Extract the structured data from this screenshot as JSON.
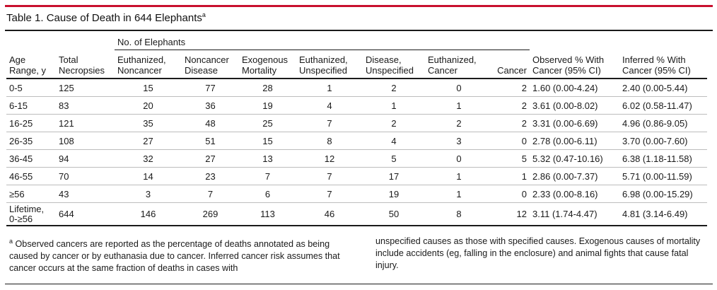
{
  "title": {
    "text": "Table 1. Cause of Death in 644 Elephants",
    "marker": "a"
  },
  "group_header": "No. of Elephants",
  "columns": [
    "Age\nRange, y",
    "Total\nNecropsies",
    "Euthanized,\nNoncancer",
    "Noncancer\nDisease",
    "Exogenous\nMortality",
    "Euthanized,\nUnspecified",
    "Disease,\nUnspecified",
    "Euthanized,\nCancer",
    "Cancer",
    "Observed % With\nCancer (95% CI)",
    "Inferred % With\nCancer (95% CI)"
  ],
  "rows": [
    [
      "0-5",
      "125",
      "15",
      "77",
      "28",
      "1",
      "2",
      "0",
      "2",
      "1.60 (0.00-4.24)",
      "2.40 (0.00-5.44)"
    ],
    [
      "6-15",
      "83",
      "20",
      "36",
      "19",
      "4",
      "1",
      "1",
      "2",
      "3.61 (0.00-8.02)",
      "6.02 (0.58-11.47)"
    ],
    [
      "16-25",
      "121",
      "35",
      "48",
      "25",
      "7",
      "2",
      "2",
      "2",
      "3.31 (0.00-6.69)",
      "4.96 (0.86-9.05)"
    ],
    [
      "26-35",
      "108",
      "27",
      "51",
      "15",
      "8",
      "4",
      "3",
      "0",
      "2.78 (0.00-6.11)",
      "3.70 (0.00-7.60)"
    ],
    [
      "36-45",
      "94",
      "32",
      "27",
      "13",
      "12",
      "5",
      "0",
      "5",
      "5.32 (0.47-10.16)",
      "6.38 (1.18-11.58)"
    ],
    [
      "46-55",
      "70",
      "14",
      "23",
      "7",
      "7",
      "17",
      "1",
      "1",
      "2.86 (0.00-7.37)",
      "5.71 (0.00-11.59)"
    ],
    [
      "≥56",
      "43",
      "3",
      "7",
      "6",
      "7",
      "19",
      "1",
      "0",
      "2.33 (0.00-8.16)",
      "6.98 (0.00-15.29)"
    ],
    [
      "Lifetime,\n0-≥56",
      "644",
      "146",
      "269",
      "113",
      "46",
      "50",
      "8",
      "12",
      "3.11 (1.74-4.47)",
      "4.81 (3.14-6.49)"
    ]
  ],
  "footnote": {
    "marker": "a",
    "left": "Observed cancers are reported as the percentage of deaths annotated as being caused by cancer or by euthanasia due to cancer. Inferred cancer risk assumes that cancer occurs at the same fraction of deaths in cases with",
    "right": "unspecified causes as those with specified causes. Exogenous causes of mortality include accidents (eg, falling in the enclosure) and animal fights that cause fatal injury."
  },
  "colors": {
    "accent": "#c8102e",
    "rule": "#1a1a1a",
    "row_rule": "#bdbdbd"
  }
}
